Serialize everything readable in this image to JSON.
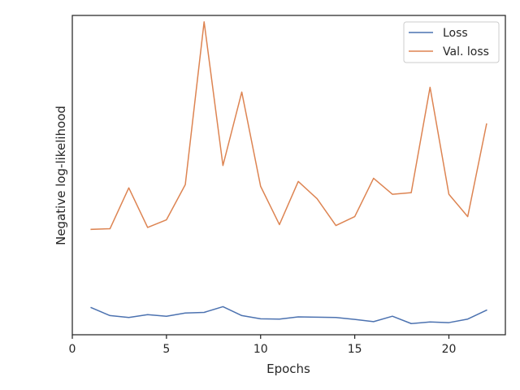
{
  "chart_data": {
    "type": "line",
    "title": "",
    "xlabel": "Epochs",
    "ylabel": "Negative log-likelihood",
    "xlim": [
      0,
      23
    ],
    "ylim": [
      0,
      1
    ],
    "x_ticks": [
      0,
      5,
      10,
      15,
      20
    ],
    "y_ticks": [],
    "x": [
      1,
      2,
      3,
      4,
      5,
      6,
      7,
      8,
      9,
      10,
      11,
      12,
      13,
      14,
      15,
      16,
      17,
      18,
      19,
      20,
      21,
      22
    ],
    "series": [
      {
        "name": "Loss",
        "color": "#4c72b0",
        "values": [
          0.085,
          0.06,
          0.054,
          0.063,
          0.058,
          0.068,
          0.07,
          0.088,
          0.06,
          0.05,
          0.049,
          0.056,
          0.055,
          0.054,
          0.048,
          0.041,
          0.058,
          0.035,
          0.04,
          0.038,
          0.049,
          0.077
        ]
      },
      {
        "name": "Val. loss",
        "color": "#dd8452",
        "values": [
          0.33,
          0.332,
          0.46,
          0.336,
          0.36,
          0.47,
          0.98,
          0.53,
          0.76,
          0.465,
          0.345,
          0.48,
          0.426,
          0.342,
          0.37,
          0.49,
          0.44,
          0.445,
          0.775,
          0.44,
          0.37,
          0.66
        ]
      }
    ],
    "grid": false,
    "legend_position": "top-right"
  }
}
